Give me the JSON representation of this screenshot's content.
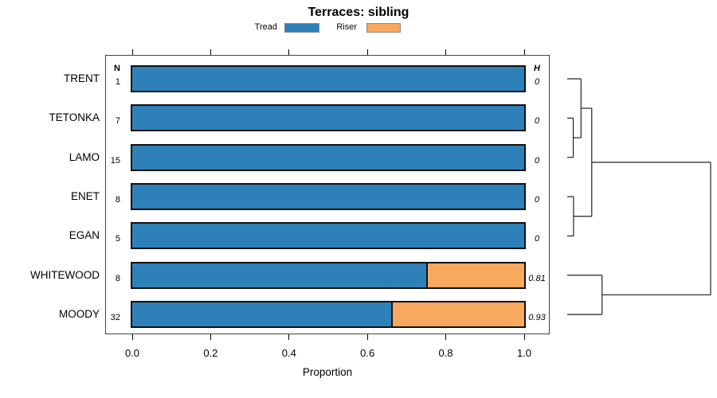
{
  "title": "Terraces: sibling",
  "legend": [
    {
      "label": "Tread",
      "color": "#2E81B8"
    },
    {
      "label": "Riser",
      "color": "#F9A85F"
    }
  ],
  "columns": {
    "n_header": "N",
    "h_header": "H"
  },
  "xaxis": {
    "label": "Proportion",
    "ticks": [
      "0.0",
      "0.2",
      "0.4",
      "0.6",
      "0.8",
      "1.0"
    ],
    "range": [
      0.0,
      1.0
    ]
  },
  "chart_data": {
    "type": "bar",
    "orientation": "horizontal",
    "stacked": true,
    "title": "Terraces: sibling",
    "xlabel": "Proportion",
    "xlim": [
      0,
      1
    ],
    "categories": [
      "TRENT",
      "TETONKA",
      "LAMO",
      "ENET",
      "EGAN",
      "WHITEWOOD",
      "MOODY"
    ],
    "n_values": [
      1,
      7,
      15,
      8,
      5,
      8,
      32
    ],
    "h_values": [
      "0",
      "0",
      "0",
      "0",
      "0",
      "0.81",
      "0.93"
    ],
    "series": [
      {
        "name": "Tread",
        "color": "#2E81B8",
        "values": [
          1.0,
          1.0,
          1.0,
          1.0,
          1.0,
          0.75,
          0.66
        ]
      },
      {
        "name": "Riser",
        "color": "#F9A85F",
        "values": [
          0.0,
          0.0,
          0.0,
          0.0,
          0.0,
          0.25,
          0.34
        ]
      }
    ],
    "dendrogram": {
      "side": "right",
      "merges": [
        {
          "id": "m1",
          "a": "TETONKA",
          "b": "LAMO",
          "height": 0.042
        },
        {
          "id": "m2",
          "a": "TRENT",
          "b": "m1",
          "height": 0.096
        },
        {
          "id": "m3",
          "a": "ENET",
          "b": "EGAN",
          "height": 0.044
        },
        {
          "id": "m4",
          "a": "m2",
          "b": "m3",
          "height": 0.171
        },
        {
          "id": "m5",
          "a": "WHITEWOOD",
          "b": "MOODY",
          "height": 0.243
        },
        {
          "id": "root",
          "a": "m4",
          "b": "m5",
          "height": 1.0
        }
      ]
    }
  }
}
